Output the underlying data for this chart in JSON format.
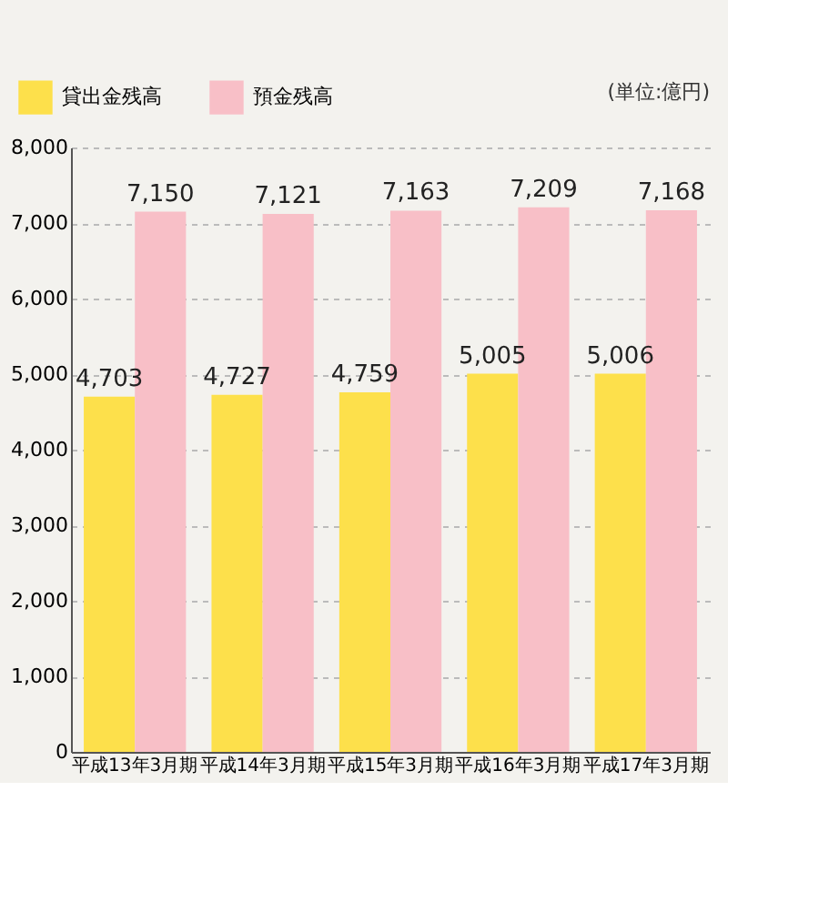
{
  "chart_data": {
    "type": "bar",
    "categories": [
      "平成13年3月期",
      "平成14年3月期",
      "平成15年3月期",
      "平成16年3月期",
      "平成17年3月期"
    ],
    "series": [
      {
        "name": "貸出金残高",
        "color": "#fde04b",
        "values": [
          4703,
          4727,
          4759,
          5005,
          5006
        ],
        "value_labels": [
          "4,703",
          "4,727",
          "4,759",
          "5,005",
          "5,006"
        ]
      },
      {
        "name": "預金残高",
        "color": "#f8bfc7",
        "values": [
          7150,
          7121,
          7163,
          7209,
          7168
        ],
        "value_labels": [
          "7,150",
          "7,121",
          "7,163",
          "7,209",
          "7,168"
        ]
      }
    ],
    "ylim": [
      0,
      8000
    ],
    "yticks": [
      0,
      {
        "value": 1000,
        "label": "1,000"
      },
      {
        "value": 2000,
        "label": "2,000"
      },
      {
        "value": 3000,
        "label": "3,000"
      },
      {
        "value": 4000,
        "label": "4,000"
      },
      {
        "value": 5000,
        "label": "5,000"
      },
      {
        "value": 6000,
        "label": "6,000"
      },
      {
        "value": 7000,
        "label": "7,000"
      },
      {
        "value": 8000,
        "label": "8,000"
      }
    ],
    "grid": "y",
    "legend": "top left",
    "annotations": [
      "(単位:億円)"
    ]
  }
}
